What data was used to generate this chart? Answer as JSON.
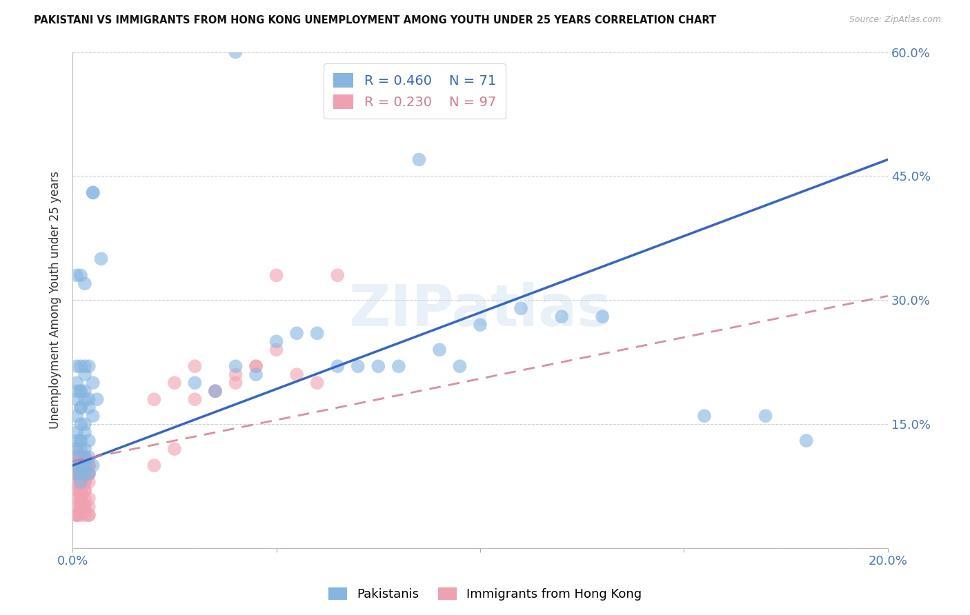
{
  "title": "PAKISTANI VS IMMIGRANTS FROM HONG KONG UNEMPLOYMENT AMONG YOUTH UNDER 25 YEARS CORRELATION CHART",
  "source": "Source: ZipAtlas.com",
  "ylabel": "Unemployment Among Youth under 25 years",
  "x_min": 0.0,
  "x_max": 0.2,
  "y_min": 0.0,
  "y_max": 0.6,
  "x_ticks": [
    0.0,
    0.05,
    0.1,
    0.15,
    0.2
  ],
  "x_tick_labels": [
    "0.0%",
    "",
    "",
    "",
    "20.0%"
  ],
  "y_ticks": [
    0.0,
    0.15,
    0.3,
    0.45,
    0.6
  ],
  "y_tick_labels_right": [
    "",
    "15.0%",
    "30.0%",
    "45.0%",
    "60.0%"
  ],
  "legend_blue_R": "0.460",
  "legend_blue_N": "71",
  "legend_pink_R": "0.230",
  "legend_pink_N": "97",
  "blue_color": "#85b5e0",
  "pink_color": "#f0a0b0",
  "blue_line_color": "#3366cc",
  "pink_line_color": "#dd7788",
  "watermark": "ZIPatlas",
  "blue_line_x0": 0.0,
  "blue_line_y0": 0.1,
  "blue_line_x1": 0.2,
  "blue_line_y1": 0.47,
  "pink_line_x0": 0.0,
  "pink_line_y0": 0.105,
  "pink_line_x1": 0.2,
  "pink_line_y1": 0.305,
  "pakistanis": {
    "x": [
      0.04,
      0.005,
      0.005,
      0.007,
      0.003,
      0.002,
      0.001,
      0.003,
      0.002,
      0.004,
      0.001,
      0.003,
      0.002,
      0.001,
      0.005,
      0.003,
      0.002,
      0.004,
      0.001,
      0.006,
      0.002,
      0.003,
      0.001,
      0.004,
      0.002,
      0.001,
      0.003,
      0.002,
      0.005,
      0.001,
      0.003,
      0.002,
      0.001,
      0.004,
      0.002,
      0.003,
      0.001,
      0.002,
      0.004,
      0.003,
      0.001,
      0.002,
      0.003,
      0.001,
      0.005,
      0.002,
      0.004,
      0.001,
      0.003,
      0.002,
      0.03,
      0.035,
      0.04,
      0.045,
      0.05,
      0.055,
      0.06,
      0.065,
      0.07,
      0.075,
      0.08,
      0.085,
      0.09,
      0.095,
      0.1,
      0.11,
      0.12,
      0.13,
      0.155,
      0.17,
      0.18
    ],
    "y": [
      0.6,
      0.43,
      0.43,
      0.35,
      0.32,
      0.33,
      0.33,
      0.21,
      0.22,
      0.22,
      0.22,
      0.22,
      0.19,
      0.2,
      0.2,
      0.19,
      0.19,
      0.18,
      0.19,
      0.18,
      0.17,
      0.18,
      0.18,
      0.17,
      0.17,
      0.16,
      0.15,
      0.15,
      0.16,
      0.14,
      0.14,
      0.13,
      0.13,
      0.13,
      0.13,
      0.12,
      0.12,
      0.12,
      0.11,
      0.11,
      0.11,
      0.1,
      0.1,
      0.1,
      0.1,
      0.09,
      0.09,
      0.09,
      0.09,
      0.08,
      0.2,
      0.19,
      0.22,
      0.21,
      0.25,
      0.26,
      0.26,
      0.22,
      0.22,
      0.22,
      0.22,
      0.47,
      0.24,
      0.22,
      0.27,
      0.29,
      0.28,
      0.28,
      0.16,
      0.16,
      0.13
    ]
  },
  "hk": {
    "x": [
      0.002,
      0.003,
      0.001,
      0.004,
      0.002,
      0.001,
      0.003,
      0.002,
      0.001,
      0.002,
      0.003,
      0.001,
      0.002,
      0.004,
      0.001,
      0.003,
      0.002,
      0.001,
      0.003,
      0.002,
      0.001,
      0.002,
      0.003,
      0.001,
      0.002,
      0.003,
      0.004,
      0.001,
      0.002,
      0.003,
      0.001,
      0.002,
      0.001,
      0.003,
      0.002,
      0.004,
      0.003,
      0.002,
      0.001,
      0.002,
      0.003,
      0.002,
      0.004,
      0.001,
      0.003,
      0.002,
      0.004,
      0.001,
      0.002,
      0.003,
      0.001,
      0.002,
      0.003,
      0.004,
      0.001,
      0.002,
      0.003,
      0.001,
      0.002,
      0.003,
      0.004,
      0.001,
      0.002,
      0.001,
      0.003,
      0.002,
      0.004,
      0.003,
      0.002,
      0.001,
      0.002,
      0.003,
      0.002,
      0.004,
      0.001,
      0.003,
      0.002,
      0.004,
      0.001,
      0.002,
      0.02,
      0.025,
      0.03,
      0.035,
      0.04,
      0.045,
      0.05,
      0.055,
      0.06,
      0.065,
      0.02,
      0.025,
      0.03,
      0.035,
      0.04,
      0.045,
      0.05
    ],
    "y": [
      0.1,
      0.09,
      0.08,
      0.1,
      0.11,
      0.09,
      0.1,
      0.08,
      0.12,
      0.11,
      0.1,
      0.09,
      0.08,
      0.1,
      0.11,
      0.09,
      0.08,
      0.07,
      0.09,
      0.1,
      0.11,
      0.08,
      0.09,
      0.1,
      0.07,
      0.08,
      0.09,
      0.1,
      0.11,
      0.08,
      0.09,
      0.1,
      0.07,
      0.08,
      0.09,
      0.1,
      0.11,
      0.08,
      0.09,
      0.1,
      0.07,
      0.08,
      0.09,
      0.1,
      0.11,
      0.08,
      0.09,
      0.1,
      0.07,
      0.08,
      0.09,
      0.1,
      0.11,
      0.08,
      0.09,
      0.1,
      0.07,
      0.08,
      0.09,
      0.1,
      0.04,
      0.05,
      0.06,
      0.04,
      0.05,
      0.06,
      0.04,
      0.05,
      0.06,
      0.04,
      0.05,
      0.06,
      0.04,
      0.05,
      0.06,
      0.04,
      0.05,
      0.06,
      0.04,
      0.05,
      0.18,
      0.2,
      0.22,
      0.19,
      0.21,
      0.22,
      0.33,
      0.21,
      0.2,
      0.33,
      0.1,
      0.12,
      0.18,
      0.19,
      0.2,
      0.22,
      0.24
    ]
  }
}
